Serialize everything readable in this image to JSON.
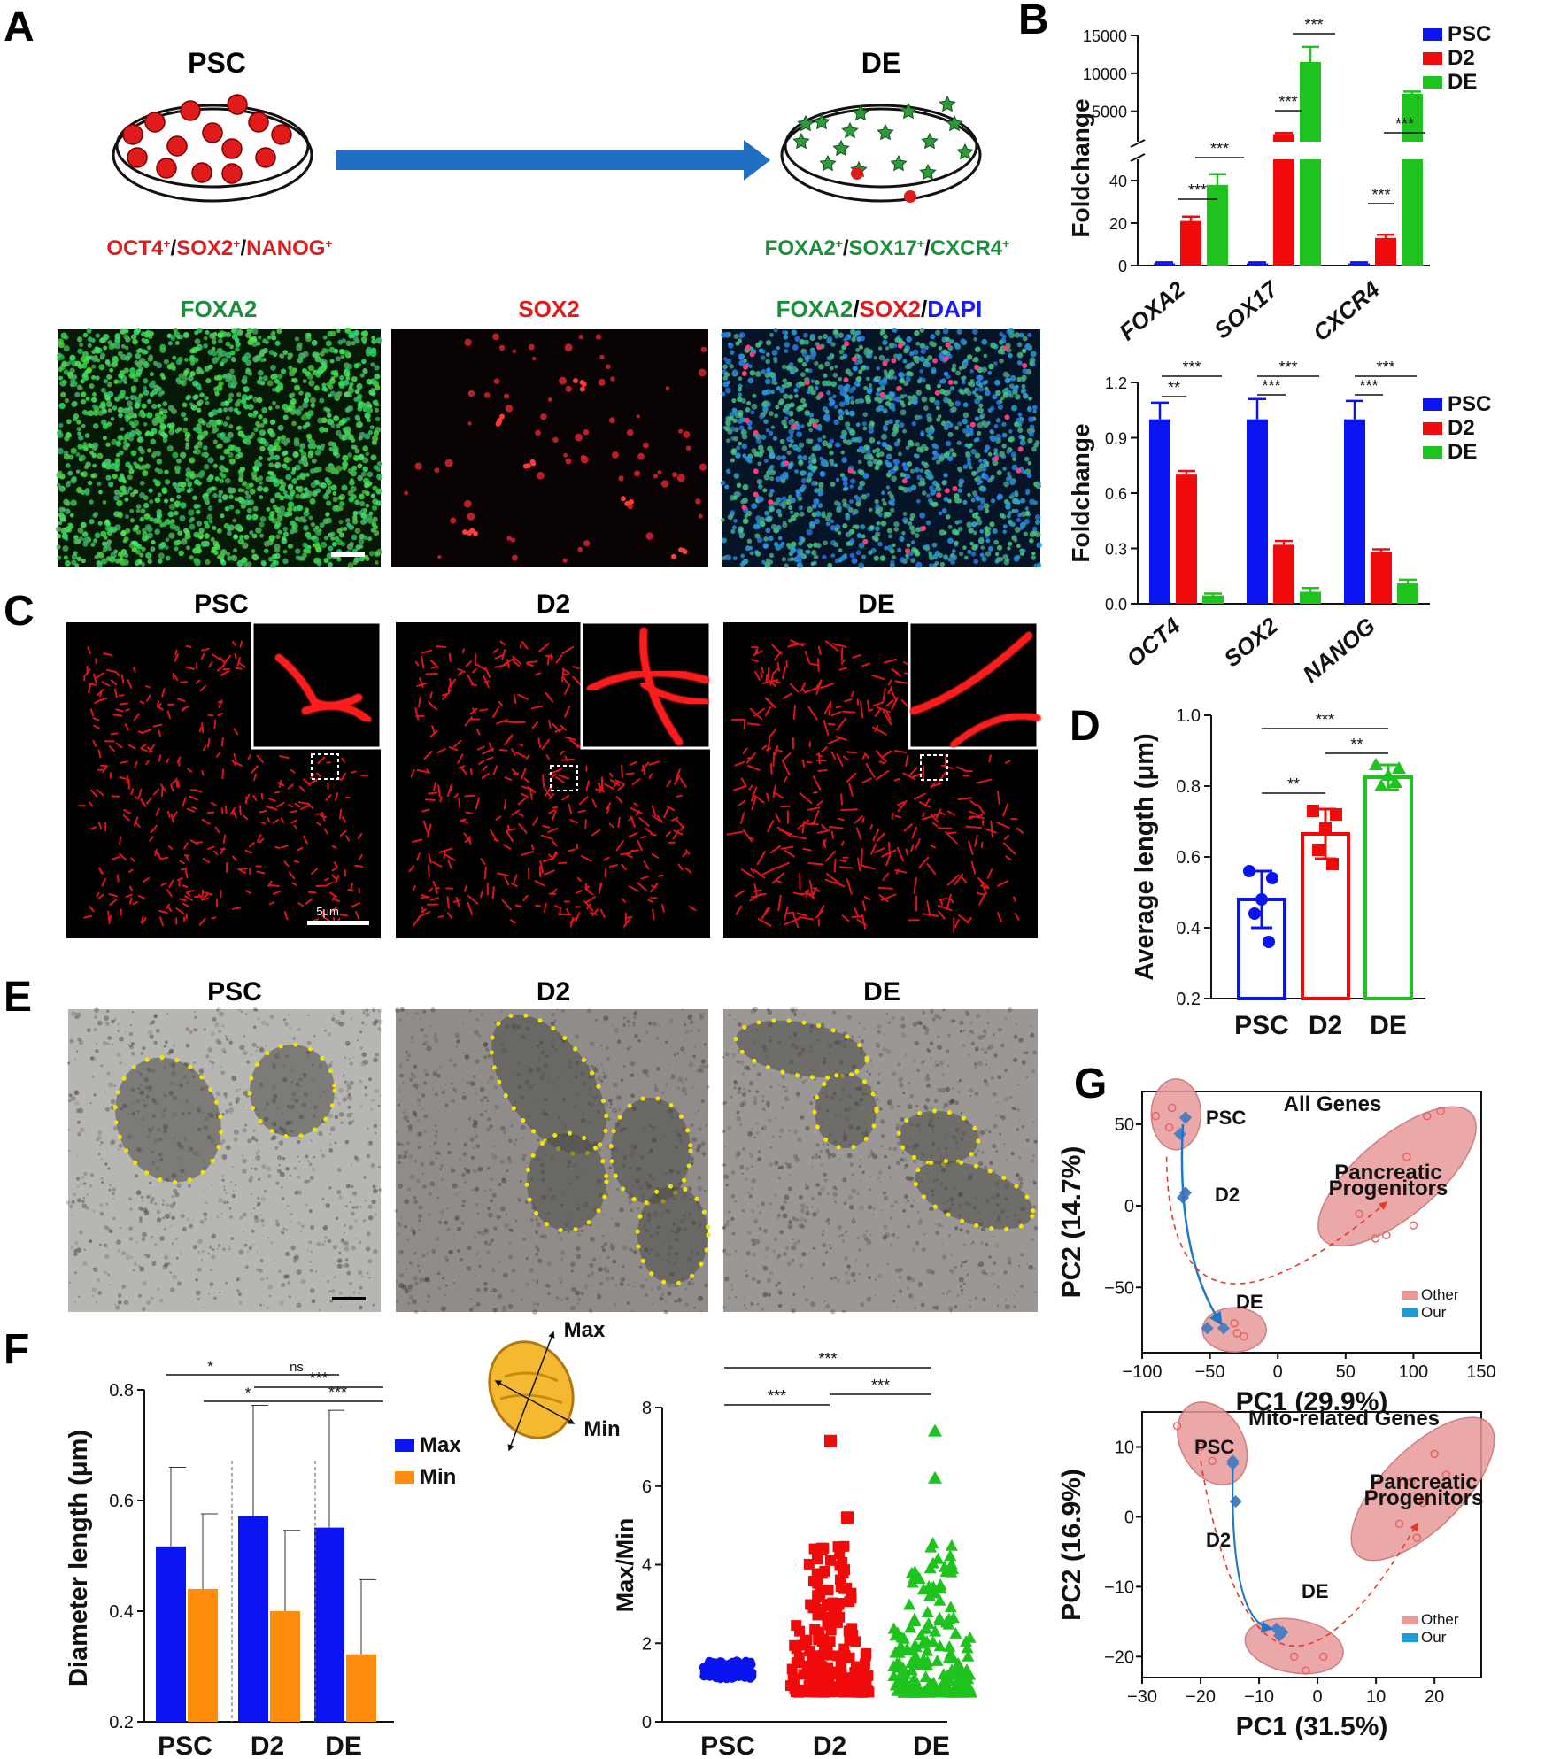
{
  "panel_letters": [
    "A",
    "B",
    "C",
    "D",
    "E",
    "F",
    "G"
  ],
  "panel_a": {
    "left_dish_title": "PSC",
    "right_dish_title": "DE",
    "left_markers": [
      "OCT4",
      "+",
      "/",
      "SOX2",
      "+",
      "/",
      "NANOG",
      "+"
    ],
    "right_markers": [
      "FOXA2",
      "+",
      "/",
      "SOX17",
      "+",
      "/",
      "CXCR4",
      "+"
    ],
    "image_titles": [
      "FOXA2",
      "SOX2"
    ],
    "merge_title": [
      "FOXA2",
      "/",
      "SOX2",
      "/",
      "DAPI"
    ]
  },
  "panel_c": {
    "titles": [
      "PSC",
      "D2",
      "DE"
    ],
    "scale_label": "5μm"
  },
  "panel_e": {
    "titles": [
      "PSC",
      "D2",
      "DE"
    ]
  },
  "colors": {
    "psc": "#0a14f0",
    "d2": "#f00a0a",
    "de": "#1ec31e",
    "max": "#0a14f0",
    "min": "#ff8c0a",
    "marker_red": "#e01b1b",
    "marker_green": "#1a8f3a",
    "dapi_blue": "#1a1aff",
    "arrow_blue": "#1f77c4"
  },
  "chart_data": [
    {
      "id": "B_top",
      "type": "bar",
      "ylabel": "Foldchange",
      "categories": [
        "FOXA2",
        "SOX17",
        "CXCR4"
      ],
      "series": [
        {
          "name": "PSC",
          "values": [
            1,
            1,
            1
          ],
          "errors": [
            0.5,
            0.5,
            0.5
          ]
        },
        {
          "name": "D2",
          "values": [
            21,
            2000,
            13
          ],
          "errors": [
            2,
            150,
            1.5
          ]
        },
        {
          "name": "DE",
          "values": [
            38,
            11500,
            7300
          ],
          "errors": [
            5,
            2000,
            300
          ]
        }
      ],
      "y_broken_axis": {
        "lower_range": [
          0,
          50
        ],
        "lower_ticks": [
          0,
          20,
          40
        ],
        "upper_range": [
          1000,
          15000
        ],
        "upper_ticks": [
          5000,
          10000,
          15000
        ]
      },
      "significance": [
        "***",
        "***",
        "***",
        "***",
        "***",
        "***"
      ]
    },
    {
      "id": "B_bottom",
      "type": "bar",
      "ylabel": "Foldchange",
      "categories": [
        "OCT4",
        "SOX2",
        "NANOG"
      ],
      "series": [
        {
          "name": "PSC",
          "values": [
            1.0,
            1.0,
            1.0
          ],
          "errors": [
            0.09,
            0.11,
            0.1
          ]
        },
        {
          "name": "D2",
          "values": [
            0.7,
            0.32,
            0.28
          ],
          "errors": [
            0.02,
            0.02,
            0.015
          ]
        },
        {
          "name": "DE",
          "values": [
            0.045,
            0.065,
            0.11
          ],
          "errors": [
            0.01,
            0.02,
            0.02
          ]
        }
      ],
      "ylim": [
        0,
        1.2
      ],
      "yticks": [
        "0.0",
        "0.3",
        "0.6",
        "0.9",
        "1.2"
      ],
      "significance": [
        "**",
        "***",
        "***",
        "***",
        "***",
        "***"
      ]
    },
    {
      "id": "D",
      "type": "bar",
      "ylabel": "Average length (μm)",
      "categories": [
        "PSC",
        "D2",
        "DE"
      ],
      "values": [
        0.48,
        0.665,
        0.825
      ],
      "errors": [
        0.08,
        0.07,
        0.035
      ],
      "points": [
        [
          0.56,
          0.54,
          0.48,
          0.44,
          0.36
        ],
        [
          0.73,
          0.72,
          0.68,
          0.62,
          0.58
        ],
        [
          0.86,
          0.85,
          0.83,
          0.8,
          0.81
        ]
      ],
      "ylim": [
        0.2,
        1.0
      ],
      "yticks": [
        "0.2",
        "0.4",
        "0.6",
        "0.8",
        "1.0"
      ],
      "significance": [
        "***",
        "**",
        "**"
      ]
    },
    {
      "id": "F_left",
      "type": "bar",
      "ylabel": "Diameter length (μm)",
      "categories": [
        "PSC",
        "D2",
        "DE"
      ],
      "series": [
        {
          "name": "Max",
          "values": [
            0.517,
            0.572,
            0.551
          ],
          "errors": [
            0.143,
            0.2,
            0.212
          ]
        },
        {
          "name": "Min",
          "values": [
            0.44,
            0.4,
            0.322
          ],
          "errors": [
            0.136,
            0.146,
            0.135
          ]
        }
      ],
      "ylim": [
        0.2,
        0.8
      ],
      "yticks": [
        "0.2",
        "0.4",
        "0.6",
        "0.8"
      ],
      "significance": [
        "*",
        "ns",
        "***",
        "*",
        "***"
      ],
      "diagram_labels": [
        "Max",
        "Min"
      ]
    },
    {
      "id": "F_right",
      "type": "scatter",
      "ylabel": "Max/Min",
      "categories": [
        "PSC",
        "D2",
        "DE"
      ],
      "ranges": [
        [
          1.0,
          1.6
        ],
        [
          0.7,
          7.2
        ],
        [
          0.6,
          7.4
        ]
      ],
      "ylim": [
        0,
        8
      ],
      "yticks": [
        "0",
        "2",
        "4",
        "6",
        "8"
      ],
      "significance": [
        "***",
        "***",
        "***"
      ]
    },
    {
      "id": "G_top",
      "type": "scatter",
      "title": "All Genes",
      "xlabel": "PC1 (29.9%)",
      "ylabel": "PC2 (14.7%)",
      "xlim": [
        -100,
        150
      ],
      "ylim": [
        -90,
        70
      ],
      "xticks": [
        "−100",
        "−50",
        "0",
        "50",
        "100",
        "150"
      ],
      "yticks": [
        "−50",
        "0",
        "50"
      ],
      "group_labels": [
        "PSC",
        "D2",
        "DE",
        "Pancreatic",
        "Progenitors"
      ],
      "legend": [
        "Other",
        "Our"
      ],
      "our_points": [
        [
          -68,
          54
        ],
        [
          -72,
          44
        ],
        [
          -68,
          8
        ],
        [
          -70,
          5
        ],
        [
          -40,
          -75
        ],
        [
          -52,
          -75
        ]
      ],
      "other_points": [
        [
          -90,
          55
        ],
        [
          -80,
          48
        ],
        [
          -78,
          60
        ],
        [
          -30,
          -78
        ],
        [
          -25,
          -80
        ],
        [
          -32,
          -72
        ],
        [
          120,
          58
        ],
        [
          110,
          55
        ],
        [
          95,
          30
        ],
        [
          78,
          10
        ],
        [
          80,
          -18
        ],
        [
          100,
          -12
        ],
        [
          60,
          -5
        ],
        [
          72,
          -20
        ]
      ]
    },
    {
      "id": "G_bottom",
      "type": "scatter",
      "title": "Mito-related Genes",
      "xlabel": "PC1 (31.5%)",
      "ylabel": "PC2 (16.9%)",
      "xlim": [
        -30,
        28
      ],
      "ylim": [
        -23,
        15
      ],
      "xticks": [
        "−30",
        "−20",
        "−10",
        "0",
        "10",
        "20"
      ],
      "yticks": [
        "−20",
        "−10",
        "0",
        "10"
      ],
      "group_labels": [
        "PSC",
        "D2",
        "DE",
        "Pancreatic",
        "Progenitors"
      ],
      "legend": [
        "Other",
        "Our"
      ],
      "our_points": [
        [
          -14.5,
          8
        ],
        [
          -14.5,
          7.6
        ],
        [
          -14,
          2.2
        ],
        [
          -7,
          -16
        ],
        [
          -6,
          -16.5
        ],
        [
          -6.5,
          -17
        ]
      ],
      "other_points": [
        [
          -24,
          13
        ],
        [
          -20,
          10
        ],
        [
          -18,
          8
        ],
        [
          -4,
          -20
        ],
        [
          -2,
          -22
        ],
        [
          1,
          -20
        ],
        [
          20,
          9
        ],
        [
          16,
          5
        ],
        [
          18,
          2
        ],
        [
          14,
          -1
        ],
        [
          22,
          6
        ],
        [
          17,
          -3
        ]
      ]
    }
  ]
}
